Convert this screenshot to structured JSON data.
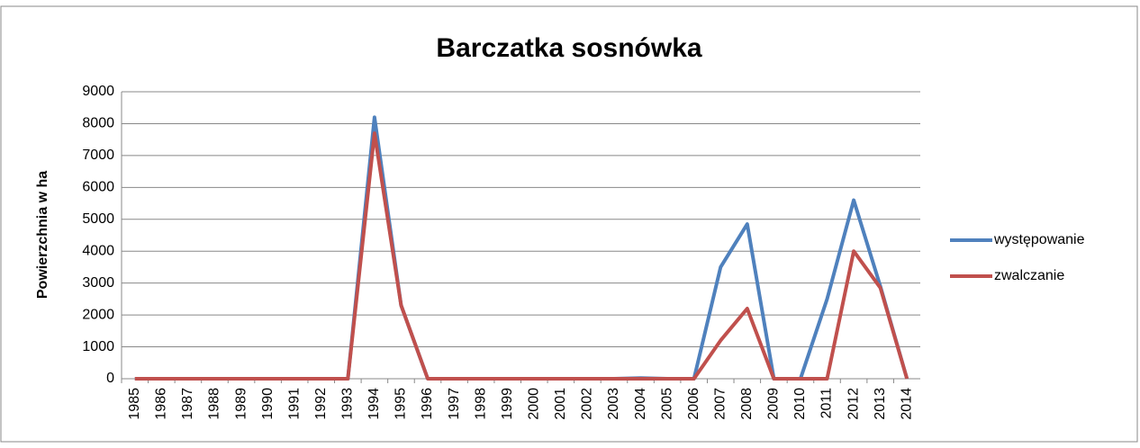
{
  "chart_data": {
    "type": "line",
    "title": "Barczatka sosnówka",
    "y_label": "Powierzchnia w ha",
    "categories": [
      "1985",
      "1986",
      "1987",
      "1988",
      "1989",
      "1990",
      "1991",
      "1992",
      "1993",
      "1994",
      "1995",
      "1996",
      "1997",
      "1998",
      "1999",
      "2000",
      "2001",
      "2002",
      "2003",
      "2004",
      "2005",
      "2006",
      "2007",
      "2008",
      "2009",
      "2010",
      "2011",
      "2012",
      "2013",
      "2014"
    ],
    "series": [
      {
        "name": "występowanie",
        "color": "#4f81bd",
        "values": [
          0,
          0,
          0,
          0,
          0,
          0,
          0,
          0,
          0,
          8200,
          2300,
          0,
          0,
          0,
          0,
          0,
          0,
          0,
          0,
          20,
          0,
          0,
          3500,
          4850,
          0,
          0,
          2500,
          5600,
          2900,
          0
        ]
      },
      {
        "name": "zwalczanie",
        "color": "#c0504d",
        "values": [
          0,
          0,
          0,
          0,
          0,
          0,
          0,
          0,
          0,
          7700,
          2300,
          0,
          0,
          0,
          0,
          0,
          0,
          0,
          0,
          0,
          0,
          0,
          1200,
          2200,
          0,
          0,
          0,
          4000,
          2850,
          0
        ]
      }
    ],
    "ylim": [
      0,
      9000
    ],
    "yticks": [
      0,
      1000,
      2000,
      3000,
      4000,
      5000,
      6000,
      7000,
      8000,
      9000
    ],
    "grid": true,
    "legend": "right"
  }
}
